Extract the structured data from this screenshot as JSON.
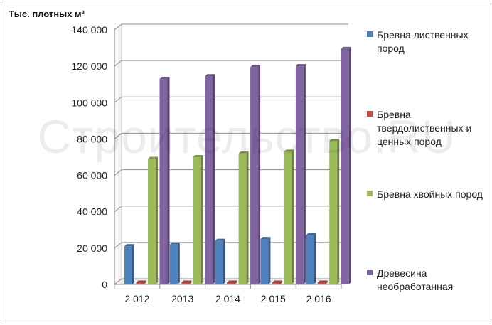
{
  "chart_data": {
    "type": "bar",
    "title": "Тыс. плотных м³",
    "xlabel": "",
    "ylabel": "",
    "categories": [
      "2 012",
      "2013",
      "2 014",
      "2 015",
      "2 016"
    ],
    "ylim": [
      0,
      140000
    ],
    "yticks": [
      0,
      20000,
      40000,
      60000,
      80000,
      100000,
      120000,
      140000
    ],
    "ytick_labels": [
      "0",
      "20 000",
      "40 000",
      "60 000",
      "80 000",
      "100 000",
      "120 000",
      "140 000"
    ],
    "grid": true,
    "legend_position": "right",
    "series": [
      {
        "name": "Бревна лиственных пород",
        "color": "#4f81bd",
        "values": [
          21000,
          22000,
          24000,
          25000,
          27000
        ]
      },
      {
        "name": "Бревна твердолиственных и ценных пород",
        "color": "#c0504d",
        "values": [
          1000,
          1000,
          1000,
          1000,
          1000
        ]
      },
      {
        "name": "Бревна хвойных пород",
        "color": "#9bbb59",
        "values": [
          69000,
          70000,
          72000,
          73000,
          79000
        ]
      },
      {
        "name": "Древесина необработанная",
        "color": "#8064a2",
        "values": [
          113000,
          114500,
          119500,
          120000,
          129500
        ]
      }
    ]
  },
  "watermark": "Строительство.RU"
}
